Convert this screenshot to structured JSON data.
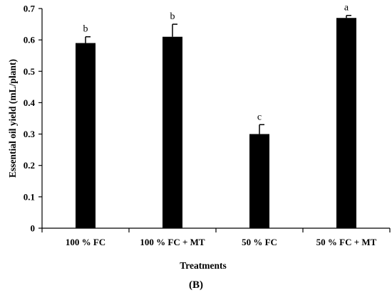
{
  "chart_data": {
    "type": "bar",
    "categories": [
      "100 % FC",
      "100 % FC + MT",
      "50 % FC",
      "50 % FC + MT"
    ],
    "values": [
      0.59,
      0.61,
      0.3,
      0.67
    ],
    "errors": [
      0.02,
      0.04,
      0.03,
      0.008
    ],
    "significance_letters": [
      "b",
      "b",
      "c",
      "a"
    ],
    "ylim": [
      0,
      0.7
    ],
    "yticks": [
      0,
      0.1,
      0.2,
      0.3,
      0.4,
      0.5,
      0.6,
      0.7
    ],
    "ytick_labels": [
      "0",
      "0.1",
      "0.2",
      "0.3",
      "0.4",
      "0.5",
      "0.6",
      "0.7"
    ],
    "xlabel": "Treatments",
    "ylabel": "Essential oil  yield (mL/plant)",
    "panel_label": "(B)",
    "grid": false,
    "bar_color": "#000000"
  }
}
